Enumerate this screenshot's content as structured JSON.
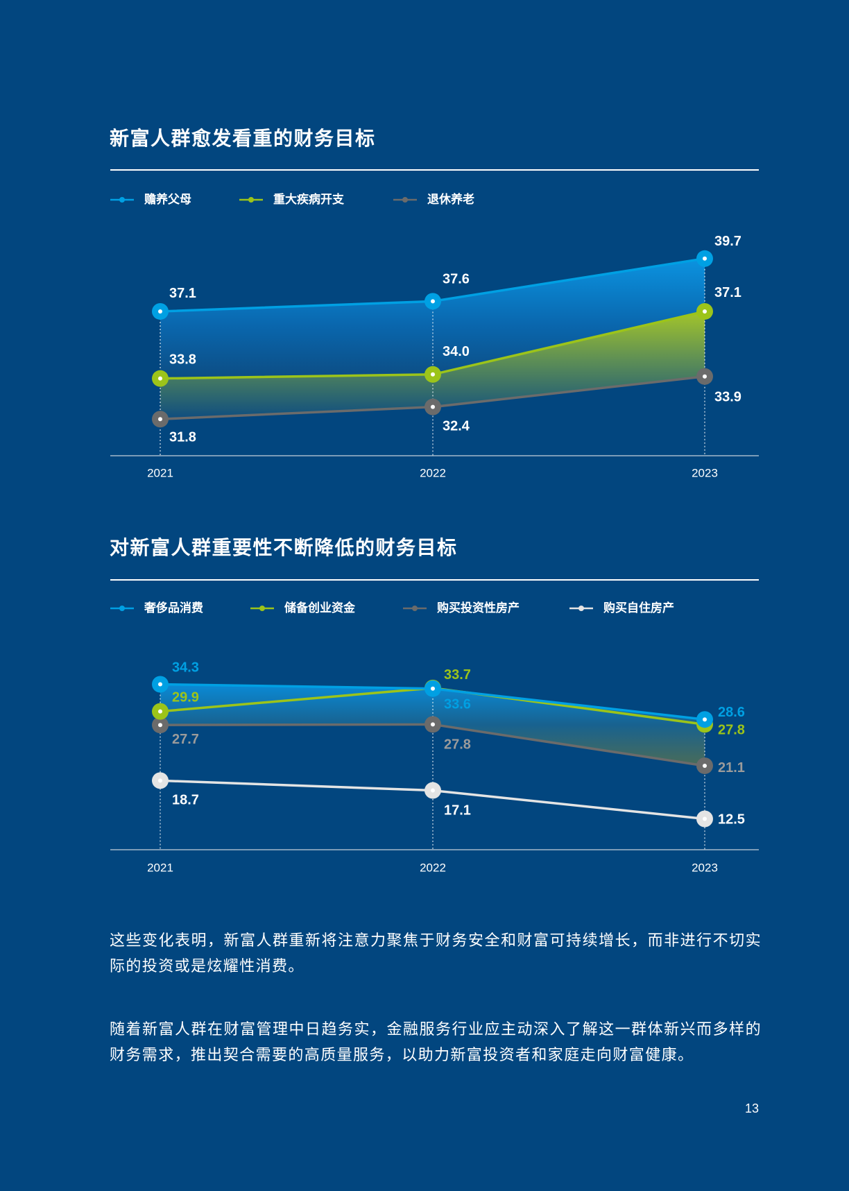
{
  "colors": {
    "background": "#02467f",
    "text": "#ffffff",
    "axis": "#c5cfda"
  },
  "chart_data": [
    {
      "type": "line",
      "title": "新富人群愈发看重的财务目标",
      "categories": [
        "2021",
        "2022",
        "2023"
      ],
      "series": [
        {
          "name": "赡养父母",
          "values": [
            37.1,
            37.6,
            39.7
          ],
          "color": "#00a0e3",
          "label_color": "#ffffff"
        },
        {
          "name": "重大疾病开支",
          "values": [
            33.8,
            34.0,
            37.1
          ],
          "color": "#9cc41a",
          "label_color": "#ffffff"
        },
        {
          "name": "退休养老",
          "values": [
            31.8,
            32.4,
            33.9
          ],
          "color": "#6b6b6b",
          "label_color": "#ffffff"
        }
      ],
      "ylim": [
        30,
        40
      ],
      "legend": "top-left",
      "grid": false,
      "data_labels": true,
      "area_fill": true
    },
    {
      "type": "line",
      "title": "对新富人群重要性不断降低的财务目标",
      "categories": [
        "2021",
        "2022",
        "2023"
      ],
      "series": [
        {
          "name": "奢侈品消费",
          "values": [
            34.3,
            33.6,
            28.6
          ],
          "color": "#00a0e3",
          "label_color": "#00a0e3"
        },
        {
          "name": "储备创业资金",
          "values": [
            29.9,
            33.7,
            27.8
          ],
          "color": "#9cc41a",
          "label_color": "#9cc41a"
        },
        {
          "name": "购买投资性房产",
          "values": [
            27.7,
            27.8,
            21.1
          ],
          "color": "#6b6b6b",
          "label_color": "#9b9b9b"
        },
        {
          "name": "购买自住房产",
          "values": [
            18.7,
            17.1,
            12.5
          ],
          "color": "#e4e4e4",
          "label_color": "#ffffff"
        }
      ],
      "ylim": [
        7.5,
        38
      ],
      "legend": "top-left",
      "grid": false,
      "data_labels": true,
      "area_fill": true
    }
  ],
  "body_text": [
    "这些变化表明，新富人群重新将注意力聚焦于财务安全和财富可持续增长，而非进行不切实际的投资或是炫耀性消费。",
    "随着新富人群在财富管理中日趋务实，金融服务行业应主动深入了解这一群体新兴而多样的财务需求，推出契合需要的高质量服务，以助力新富投资者和家庭走向财富健康。"
  ],
  "page_number": "13"
}
